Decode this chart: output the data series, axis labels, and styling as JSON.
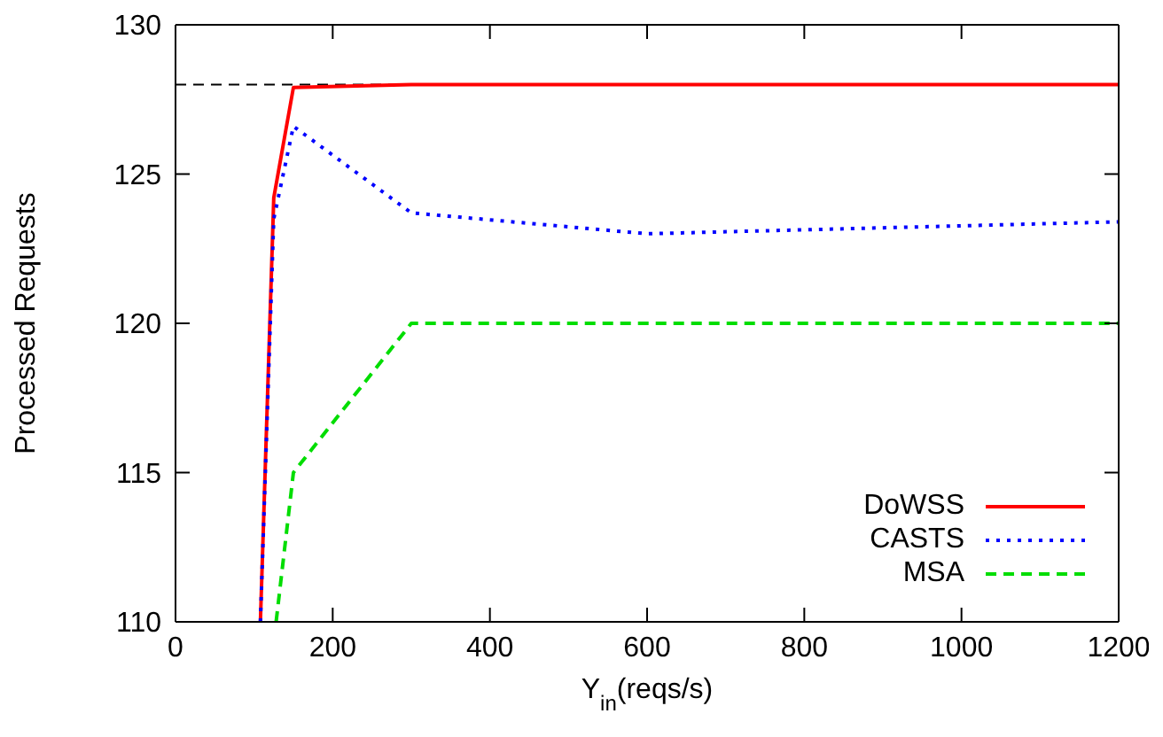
{
  "chart_data": {
    "type": "line",
    "xlabel": "Y$_{in}$(reqs/s)",
    "ylabel": "Processed Requests",
    "xlim": [
      0,
      1200
    ],
    "xticks": [
      0,
      200,
      400,
      600,
      800,
      1000,
      1200
    ],
    "ylim": [
      110,
      130
    ],
    "yticks": [
      110,
      115,
      120,
      125,
      130
    ],
    "grid": false,
    "legend": "bottom right",
    "marker": "none",
    "ref_lines": [
      {
        "axis": "y",
        "value": 128,
        "label": null,
        "color": "#000000",
        "line_style": "dashed"
      }
    ],
    "series": [
      {
        "name": "DoWSS",
        "color": "#ff0000",
        "line_style": "solid",
        "x": [
          108,
          125,
          150,
          300,
          1200
        ],
        "values": [
          110,
          124.2,
          127.9,
          128,
          128
        ]
      },
      {
        "name": "CASTS",
        "color": "#0000ff",
        "line_style": "dotted",
        "x": [
          108,
          125,
          150,
          300,
          600,
          1200
        ],
        "values": [
          110,
          123.5,
          126.6,
          123.7,
          123,
          123.4
        ]
      },
      {
        "name": "MSA",
        "color": "#00dd00",
        "line_style": "dashed",
        "x": [
          128,
          150,
          300,
          1200
        ],
        "values": [
          110,
          115,
          120,
          120
        ]
      }
    ]
  }
}
